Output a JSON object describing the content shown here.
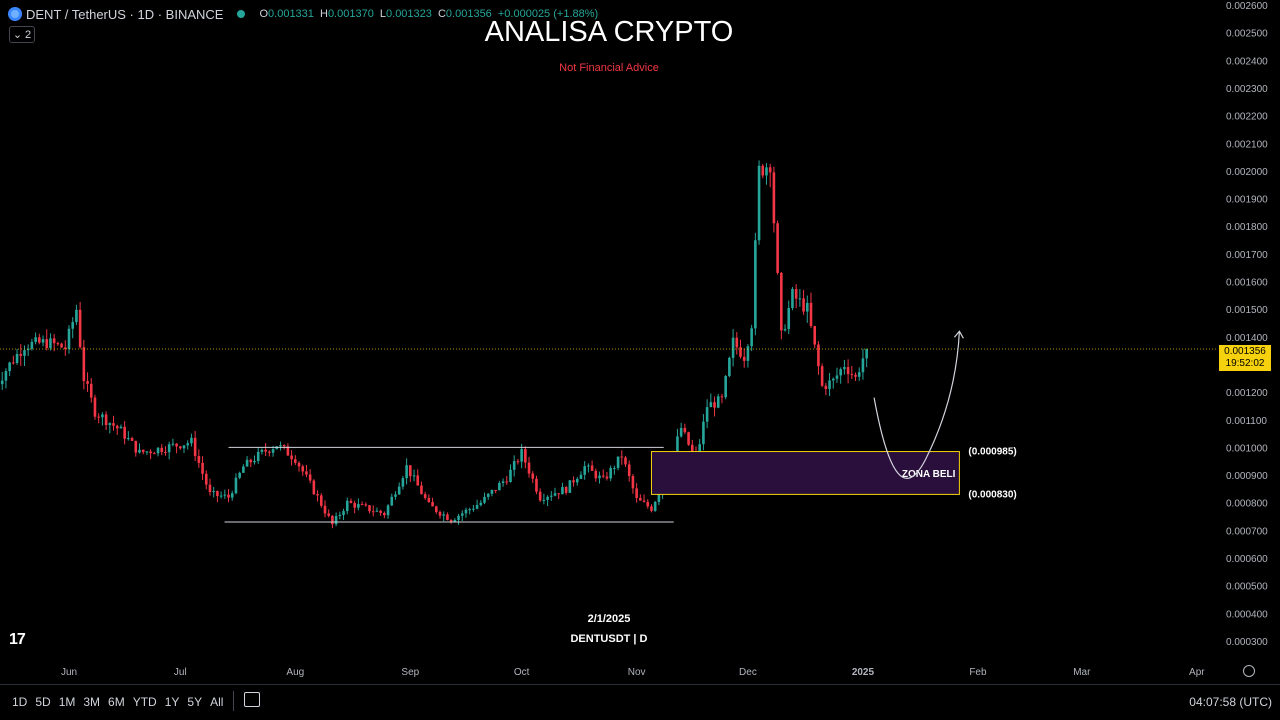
{
  "header": {
    "symbol": "DENT / TetherUS · 1D · BINANCE",
    "o_label": "O",
    "o_val": "0.001331",
    "h_label": "H",
    "h_val": "0.001370",
    "l_label": "L",
    "l_val": "0.001323",
    "c_label": "C",
    "c_val": "0.001356",
    "change": "+0.000025 (+1.88%)",
    "collapse_count": "2"
  },
  "title": "ANALISA CRYPTO",
  "subtitle": "Not Financial Advice",
  "watermark_date": "2/1/2025",
  "watermark_symbol": "DENTUSDT | D",
  "price_tag": {
    "price": "0.001356",
    "countdown": "19:52:02"
  },
  "bottom_bar": {
    "ranges": [
      "1D",
      "5D",
      "1M",
      "3M",
      "6M",
      "YTD",
      "1Y",
      "5Y",
      "All"
    ],
    "clock": "04:07:58 (UTC)"
  },
  "colors": {
    "up": "#26a69a",
    "down": "#f23645",
    "zone_fill": "#2a0f3d",
    "zone_border": "#f5d20d",
    "price_tag": "#f5d20d"
  },
  "chart_data": {
    "type": "candlestick",
    "title": "ANALISA CRYPTO",
    "symbol": "DENTUSDT",
    "interval": "1D",
    "ylim": [
      0.0003,
      0.0026
    ],
    "y_ticks": [
      "0.002600",
      "0.002500",
      "0.002400",
      "0.002300",
      "0.002200",
      "0.002100",
      "0.002000",
      "0.001900",
      "0.001800",
      "0.001700",
      "0.001600",
      "0.001500",
      "0.001400",
      "0.001300",
      "0.001200",
      "0.001100",
      "0.001000",
      "0.000900",
      "0.000800",
      "0.000700",
      "0.000600",
      "0.000500",
      "0.000400",
      "0.000300"
    ],
    "x_ticks": [
      "Jun",
      "Jul",
      "Aug",
      "Sep",
      "Oct",
      "Nov",
      "Dec",
      "2025",
      "Feb",
      "Mar",
      "Apr"
    ],
    "last_price": 0.001356,
    "range_box": {
      "top": 0.001,
      "bottom": 0.00073
    },
    "buy_zone": {
      "label": "ZONA BELI",
      "top": 0.000985,
      "bottom": 0.00083,
      "top_label": "(0.000985)",
      "bottom_label": "(0.000830)"
    },
    "anchors": [
      [
        "2024-05-12",
        0.00122
      ],
      [
        "2024-05-16",
        0.0013
      ],
      [
        "2024-05-20",
        0.00137
      ],
      [
        "2024-05-26",
        0.00138
      ],
      [
        "2024-05-31",
        0.00136
      ],
      [
        "2024-06-03",
        0.0015
      ],
      [
        "2024-06-05",
        0.00125
      ],
      [
        "2024-06-08",
        0.00113
      ],
      [
        "2024-06-15",
        0.00106
      ],
      [
        "2024-06-20",
        0.00098
      ],
      [
        "2024-06-27",
        0.001
      ],
      [
        "2024-07-04",
        0.00102
      ],
      [
        "2024-07-09",
        0.00083
      ],
      [
        "2024-07-14",
        0.00082
      ],
      [
        "2024-07-18",
        0.00093
      ],
      [
        "2024-07-23",
        0.00098
      ],
      [
        "2024-07-27",
        0.00101
      ],
      [
        "2024-08-01",
        0.00096
      ],
      [
        "2024-08-07",
        0.00082
      ],
      [
        "2024-08-11",
        0.00072
      ],
      [
        "2024-08-15",
        0.0008
      ],
      [
        "2024-08-25",
        0.00076
      ],
      [
        "2024-08-31",
        0.00093
      ],
      [
        "2024-09-06",
        0.00079
      ],
      [
        "2024-09-12",
        0.00074
      ],
      [
        "2024-09-20",
        0.0008
      ],
      [
        "2024-09-27",
        0.00089
      ],
      [
        "2024-10-01",
        0.00098
      ],
      [
        "2024-10-06",
        0.00082
      ],
      [
        "2024-10-13",
        0.00085
      ],
      [
        "2024-10-18",
        0.00093
      ],
      [
        "2024-10-23",
        0.00088
      ],
      [
        "2024-10-28",
        0.00097
      ],
      [
        "2024-11-01",
        0.00081
      ],
      [
        "2024-11-05",
        0.00078
      ],
      [
        "2024-11-09",
        0.0009
      ],
      [
        "2024-11-13",
        0.00107
      ],
      [
        "2024-11-17",
        0.00095
      ],
      [
        "2024-11-20",
        0.00115
      ],
      [
        "2024-11-24",
        0.00117
      ],
      [
        "2024-11-27",
        0.00138
      ],
      [
        "2024-11-30",
        0.00133
      ],
      [
        "2024-12-02",
        0.00145
      ],
      [
        "2024-12-04",
        0.002
      ],
      [
        "2024-12-07",
        0.00203
      ],
      [
        "2024-12-10",
        0.0014
      ],
      [
        "2024-12-13",
        0.00155
      ],
      [
        "2024-12-17",
        0.0015
      ],
      [
        "2024-12-21",
        0.00122
      ],
      [
        "2024-12-24",
        0.00124
      ],
      [
        "2024-12-27",
        0.0013
      ],
      [
        "2024-12-30",
        0.00125
      ],
      [
        "2025-01-02",
        0.00136
      ]
    ]
  }
}
